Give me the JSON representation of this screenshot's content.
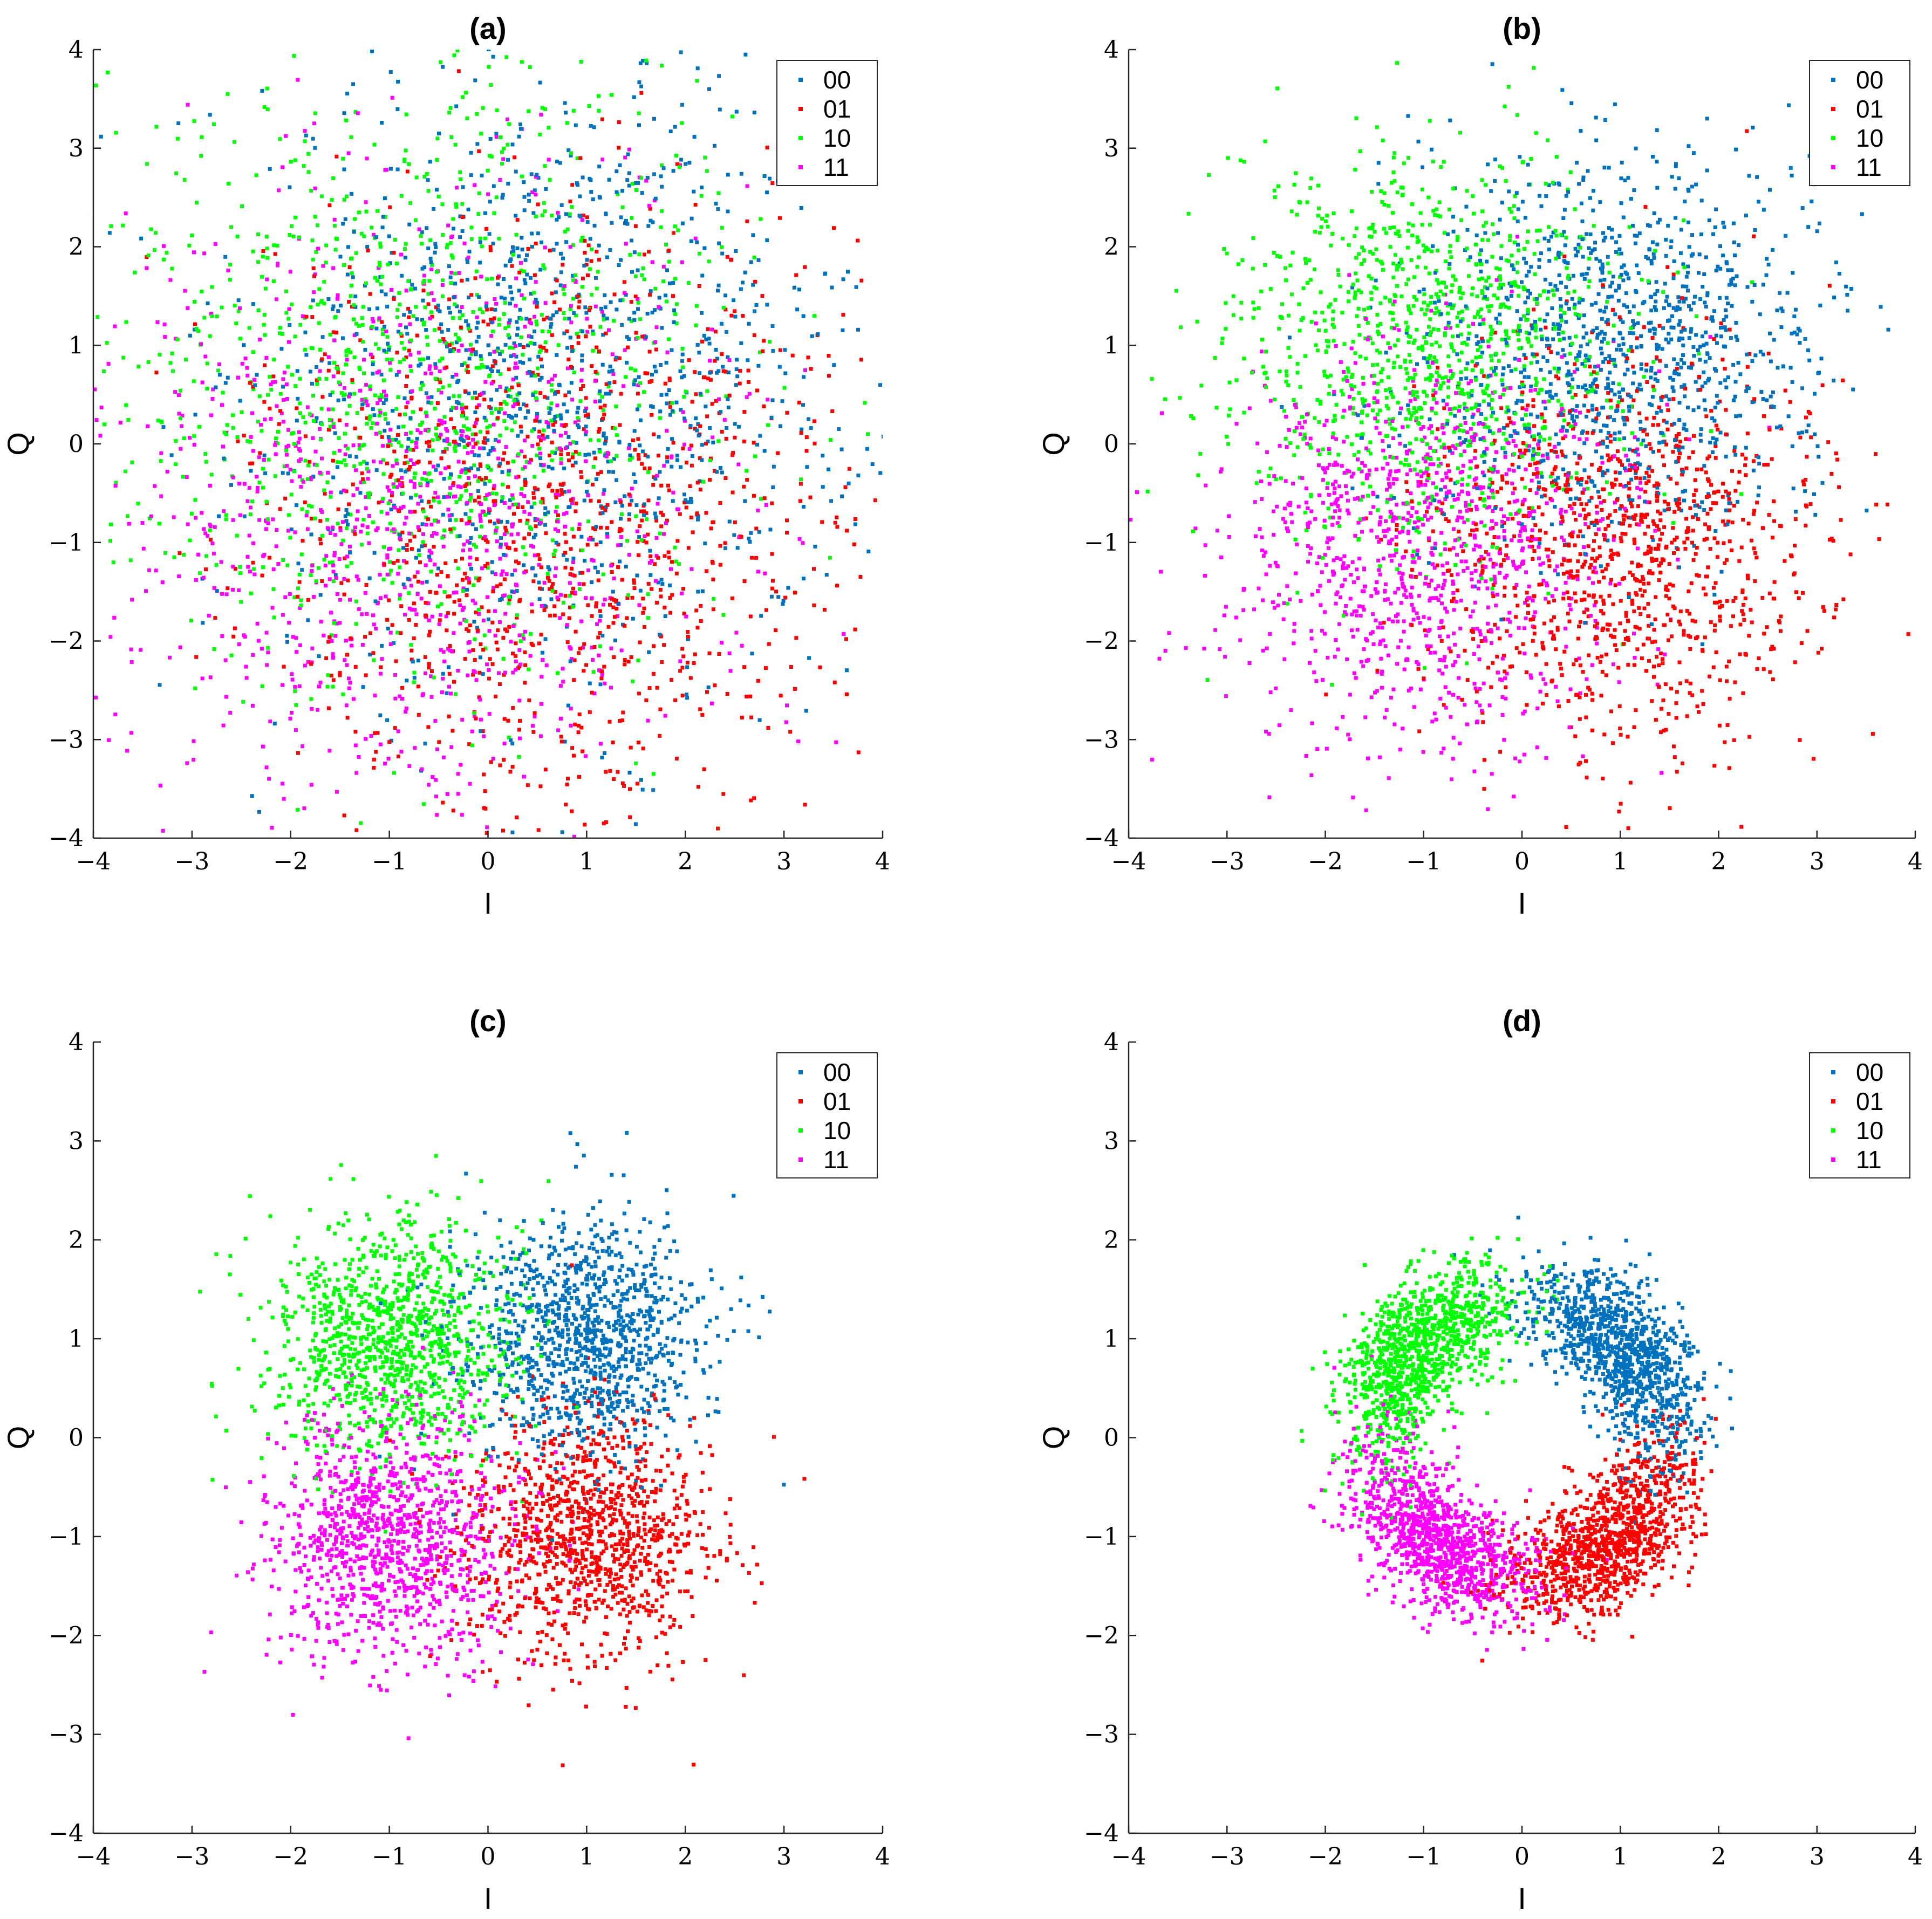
{
  "figure": {
    "panel_colors": {
      "00": "#0072BD",
      "01": "#FF0000",
      "10": "#00FF00",
      "11": "#FF00FF"
    }
  },
  "chart_data": [
    {
      "type": "scatter",
      "title": "(a)",
      "xlabel": "I",
      "ylabel": "Q",
      "xlim": [
        -4,
        4
      ],
      "ylim": [
        -4,
        4
      ],
      "xticks": [
        "−4",
        "−3",
        "−2",
        "−1",
        "0",
        "1",
        "2",
        "3",
        "4"
      ],
      "yticks": [
        "−4",
        "−3",
        "−2",
        "−1",
        "0",
        "1",
        "2",
        "3",
        "4"
      ],
      "grid": false,
      "legend_position": "top-right",
      "spread": 1.55,
      "points_per_series": 1100,
      "series": [
        {
          "name": "00",
          "color": "#0072BD",
          "center": [
            0.7071,
            0.7071
          ]
        },
        {
          "name": "01",
          "color": "#FF0000",
          "center": [
            0.7071,
            -0.7071
          ]
        },
        {
          "name": "10",
          "color": "#00FF00",
          "center": [
            -0.7071,
            0.7071
          ]
        },
        {
          "name": "11",
          "color": "#FF00FF",
          "center": [
            -0.7071,
            -0.7071
          ]
        }
      ]
    },
    {
      "type": "scatter",
      "title": "(b)",
      "xlabel": "I",
      "ylabel": "Q",
      "xlim": [
        -4,
        4
      ],
      "ylim": [
        -4,
        4
      ],
      "xticks": [
        "−4",
        "−3",
        "−2",
        "−1",
        "0",
        "1",
        "2",
        "3",
        "4"
      ],
      "yticks": [
        "−4",
        "−3",
        "−2",
        "−1",
        "0",
        "1",
        "2",
        "3",
        "4"
      ],
      "grid": false,
      "legend_position": "top-right",
      "spread": 1.0,
      "points_per_series": 1100,
      "series": [
        {
          "name": "00",
          "color": "#0072BD",
          "center": [
            1.0,
            1.0
          ]
        },
        {
          "name": "01",
          "color": "#FF0000",
          "center": [
            1.0,
            -1.0
          ]
        },
        {
          "name": "10",
          "color": "#00FF00",
          "center": [
            -1.0,
            1.0
          ]
        },
        {
          "name": "11",
          "color": "#FF00FF",
          "center": [
            -1.0,
            -1.0
          ]
        }
      ]
    },
    {
      "type": "scatter",
      "title": "(c)",
      "xlabel": "I",
      "ylabel": "Q",
      "xlim": [
        -4,
        4
      ],
      "ylim": [
        -4,
        4
      ],
      "xticks": [
        "−4",
        "−3",
        "−2",
        "−1",
        "0",
        "1",
        "2",
        "3",
        "4"
      ],
      "yticks": [
        "−4",
        "−3",
        "−2",
        "−1",
        "0",
        "1",
        "2",
        "3",
        "4"
      ],
      "grid": false,
      "legend_position": "top-right",
      "spread": 0.62,
      "points_per_series": 1100,
      "series": [
        {
          "name": "00",
          "color": "#0072BD",
          "center": [
            1.0,
            1.0
          ]
        },
        {
          "name": "01",
          "color": "#FF0000",
          "center": [
            1.0,
            -1.0
          ]
        },
        {
          "name": "10",
          "color": "#00FF00",
          "center": [
            -1.0,
            1.0
          ]
        },
        {
          "name": "11",
          "color": "#FF00FF",
          "center": [
            -1.0,
            -1.0
          ]
        }
      ]
    },
    {
      "type": "scatter",
      "title": "(d)",
      "xlabel": "I",
      "ylabel": "Q",
      "xlim": [
        -4,
        4
      ],
      "ylim": [
        -4,
        4
      ],
      "xticks": [
        "−4",
        "−3",
        "−2",
        "−1",
        "0",
        "1",
        "2",
        "3",
        "4"
      ],
      "yticks": [
        "−4",
        "−3",
        "−2",
        "−1",
        "0",
        "1",
        "2",
        "3",
        "4"
      ],
      "grid": false,
      "legend_position": "top-right",
      "shape": "ring",
      "ring_radius": 1.45,
      "ring_radial_spread": 0.28,
      "arc_spread_rad": 0.42,
      "points_per_series": 1100,
      "series": [
        {
          "name": "00",
          "color": "#0072BD",
          "angle_deg": 40
        },
        {
          "name": "01",
          "color": "#FF0000",
          "angle_deg": -50
        },
        {
          "name": "10",
          "color": "#00FF00",
          "angle_deg": 140
        },
        {
          "name": "11",
          "color": "#FF00FF",
          "angle_deg": -130
        }
      ]
    }
  ]
}
